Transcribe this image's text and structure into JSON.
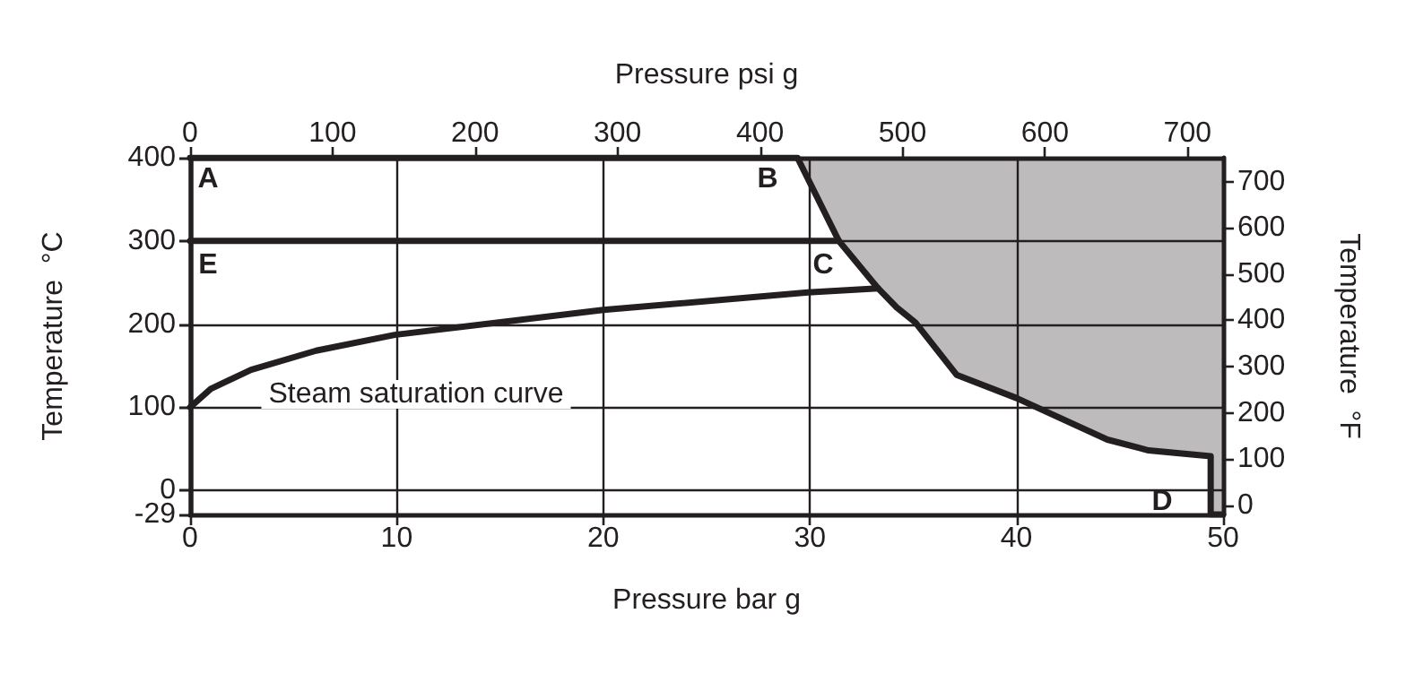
{
  "chart_data": {
    "type": "line",
    "xlabel": "Pressure bar g",
    "ylabel": "Temperature  °C",
    "x2label": "Pressure psi g",
    "y2label": "Temperature  °F",
    "xlim": [
      0,
      50
    ],
    "xticks": [
      0,
      10,
      20,
      30,
      40,
      50
    ],
    "x2lim": [
      0,
      725
    ],
    "x2ticks": [
      0,
      100,
      200,
      300,
      400,
      500,
      600,
      700
    ],
    "ylim": [
      -29,
      400
    ],
    "yticks": [
      -29,
      0,
      100,
      200,
      300,
      400
    ],
    "y2lim": [
      -20,
      752
    ],
    "y2ticks": [
      0,
      100,
      200,
      300,
      400,
      500,
      600,
      700
    ],
    "grid": true,
    "legend": false,
    "marker": "none",
    "line_style": "solid",
    "series": [
      {
        "color": "#231f20",
        "x": [
          0,
          29.4,
          31.4,
          33.3,
          34.2,
          35.1,
          37.1,
          40,
          44.4,
          46.4,
          49.4,
          49.4,
          50
        ],
        "values": [
          400,
          400,
          300,
          243,
          220,
          202,
          139,
          111,
          61,
          48,
          41,
          -29,
          -29
        ],
        "lower": [
          400,
          400,
          300,
          243,
          220,
          202,
          139,
          111,
          61,
          48,
          41,
          -29,
          -29
        ],
        "upper": [
          400,
          400,
          400,
          400,
          400,
          400,
          400,
          400,
          400,
          400,
          400,
          400,
          400
        ]
      },
      {
        "color": "#231f20",
        "x": [
          0,
          31.4
        ],
        "values": [
          300,
          300
        ]
      },
      {
        "color": "#231f20",
        "x": [
          0,
          1,
          2.95,
          6.1,
          9.9,
          20,
          29.9,
          33.3
        ],
        "values": [
          100,
          122,
          145,
          168,
          187,
          217,
          238,
          243
        ]
      }
    ],
    "annotations": [
      "Steam saturation curve",
      "A",
      "B",
      "C",
      "D",
      "E"
    ]
  }
}
